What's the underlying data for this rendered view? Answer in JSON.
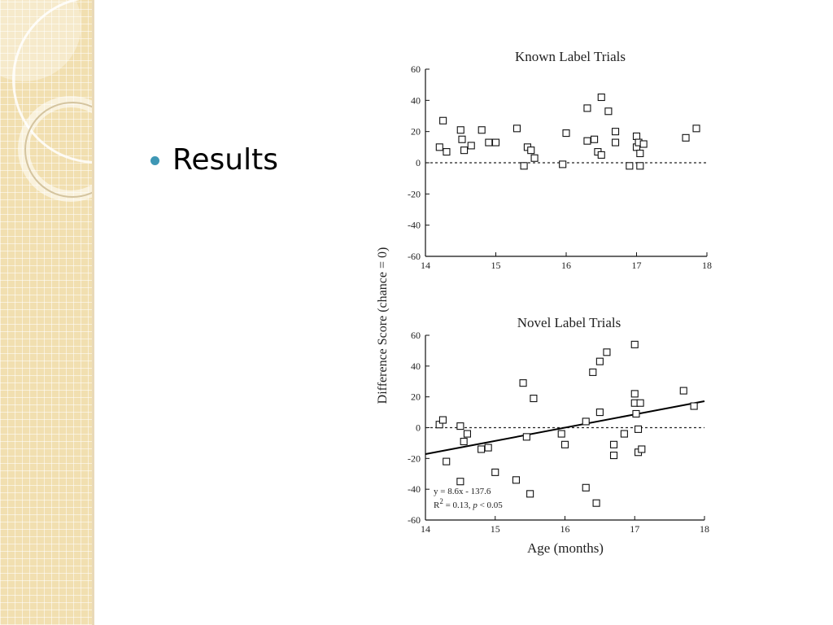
{
  "slide": {
    "bullet_text": "Results",
    "colors": {
      "bullet": "#3e97b5",
      "band": "#f1dfb0"
    }
  },
  "figure": {
    "ylabel": "Difference Score (chance = 0)",
    "xlabel": "Age (months)"
  },
  "chart_data": [
    {
      "type": "scatter",
      "title": "Known Label Trials",
      "xlabel": "",
      "ylabel": "Difference Score (chance = 0)",
      "xlim": [
        14,
        18
      ],
      "ylim": [
        -60,
        60
      ],
      "xticks": [
        14,
        15,
        16,
        17,
        18
      ],
      "yticks": [
        60,
        40,
        20,
        0,
        -20,
        -40,
        -60
      ],
      "reference_line": {
        "y": 0,
        "style": "dashed"
      },
      "points": [
        {
          "x": 14.2,
          "y": 10
        },
        {
          "x": 14.25,
          "y": 27
        },
        {
          "x": 14.3,
          "y": 7
        },
        {
          "x": 14.5,
          "y": 21
        },
        {
          "x": 14.52,
          "y": 15
        },
        {
          "x": 14.55,
          "y": 8
        },
        {
          "x": 14.65,
          "y": 11
        },
        {
          "x": 14.8,
          "y": 21
        },
        {
          "x": 14.9,
          "y": 13
        },
        {
          "x": 15.0,
          "y": 13
        },
        {
          "x": 15.3,
          "y": 22
        },
        {
          "x": 15.4,
          "y": -2
        },
        {
          "x": 15.45,
          "y": 10
        },
        {
          "x": 15.5,
          "y": 8
        },
        {
          "x": 15.55,
          "y": 3
        },
        {
          "x": 15.95,
          "y": -1
        },
        {
          "x": 16.0,
          "y": 19
        },
        {
          "x": 16.3,
          "y": 14
        },
        {
          "x": 16.3,
          "y": 35
        },
        {
          "x": 16.4,
          "y": 15
        },
        {
          "x": 16.45,
          "y": 7
        },
        {
          "x": 16.5,
          "y": 42
        },
        {
          "x": 16.5,
          "y": 5
        },
        {
          "x": 16.6,
          "y": 33
        },
        {
          "x": 16.7,
          "y": 20
        },
        {
          "x": 16.7,
          "y": 13
        },
        {
          "x": 16.9,
          "y": -2
        },
        {
          "x": 17.0,
          "y": 17
        },
        {
          "x": 17.0,
          "y": 10
        },
        {
          "x": 17.03,
          "y": 13
        },
        {
          "x": 17.05,
          "y": 6
        },
        {
          "x": 17.05,
          "y": -2
        },
        {
          "x": 17.1,
          "y": 12
        },
        {
          "x": 17.7,
          "y": 16
        },
        {
          "x": 17.85,
          "y": 22
        }
      ]
    },
    {
      "type": "scatter",
      "title": "Novel Label Trials",
      "xlabel": "Age (months)",
      "ylabel": "Difference Score (chance = 0)",
      "xlim": [
        14,
        18
      ],
      "ylim": [
        -60,
        60
      ],
      "xticks": [
        14,
        15,
        16,
        17,
        18
      ],
      "yticks": [
        60,
        40,
        20,
        0,
        -20,
        -40,
        -60
      ],
      "reference_line": {
        "y": 0,
        "style": "dashed"
      },
      "fit_line": {
        "slope": 8.6,
        "intercept": -137.6,
        "x_range": [
          14,
          18
        ]
      },
      "annotations": [
        "y = 8.6x - 137.6",
        "R",
        "2",
        " = 0.13, ",
        "p",
        " < 0.05"
      ],
      "points": [
        {
          "x": 14.2,
          "y": 2
        },
        {
          "x": 14.25,
          "y": 5
        },
        {
          "x": 14.3,
          "y": -22
        },
        {
          "x": 14.5,
          "y": -35
        },
        {
          "x": 14.5,
          "y": 1
        },
        {
          "x": 14.55,
          "y": -9
        },
        {
          "x": 14.6,
          "y": -4
        },
        {
          "x": 14.8,
          "y": -14
        },
        {
          "x": 14.9,
          "y": -13
        },
        {
          "x": 15.0,
          "y": -29
        },
        {
          "x": 15.3,
          "y": -34
        },
        {
          "x": 15.4,
          "y": 29
        },
        {
          "x": 15.45,
          "y": -6
        },
        {
          "x": 15.5,
          "y": -43
        },
        {
          "x": 15.55,
          "y": 19
        },
        {
          "x": 15.95,
          "y": -4
        },
        {
          "x": 16.0,
          "y": -11
        },
        {
          "x": 16.3,
          "y": 4
        },
        {
          "x": 16.3,
          "y": -39
        },
        {
          "x": 16.4,
          "y": 36
        },
        {
          "x": 16.45,
          "y": -49
        },
        {
          "x": 16.5,
          "y": 43
        },
        {
          "x": 16.5,
          "y": 10
        },
        {
          "x": 16.6,
          "y": 49
        },
        {
          "x": 16.7,
          "y": -11
        },
        {
          "x": 16.7,
          "y": -18
        },
        {
          "x": 16.85,
          "y": -4
        },
        {
          "x": 17.0,
          "y": 54
        },
        {
          "x": 17.0,
          "y": 22
        },
        {
          "x": 17.0,
          "y": 16
        },
        {
          "x": 17.02,
          "y": 9
        },
        {
          "x": 17.05,
          "y": -16
        },
        {
          "x": 17.05,
          "y": -1
        },
        {
          "x": 17.08,
          "y": 16
        },
        {
          "x": 17.1,
          "y": -14
        },
        {
          "x": 17.7,
          "y": 24
        },
        {
          "x": 17.85,
          "y": 14
        }
      ]
    }
  ]
}
